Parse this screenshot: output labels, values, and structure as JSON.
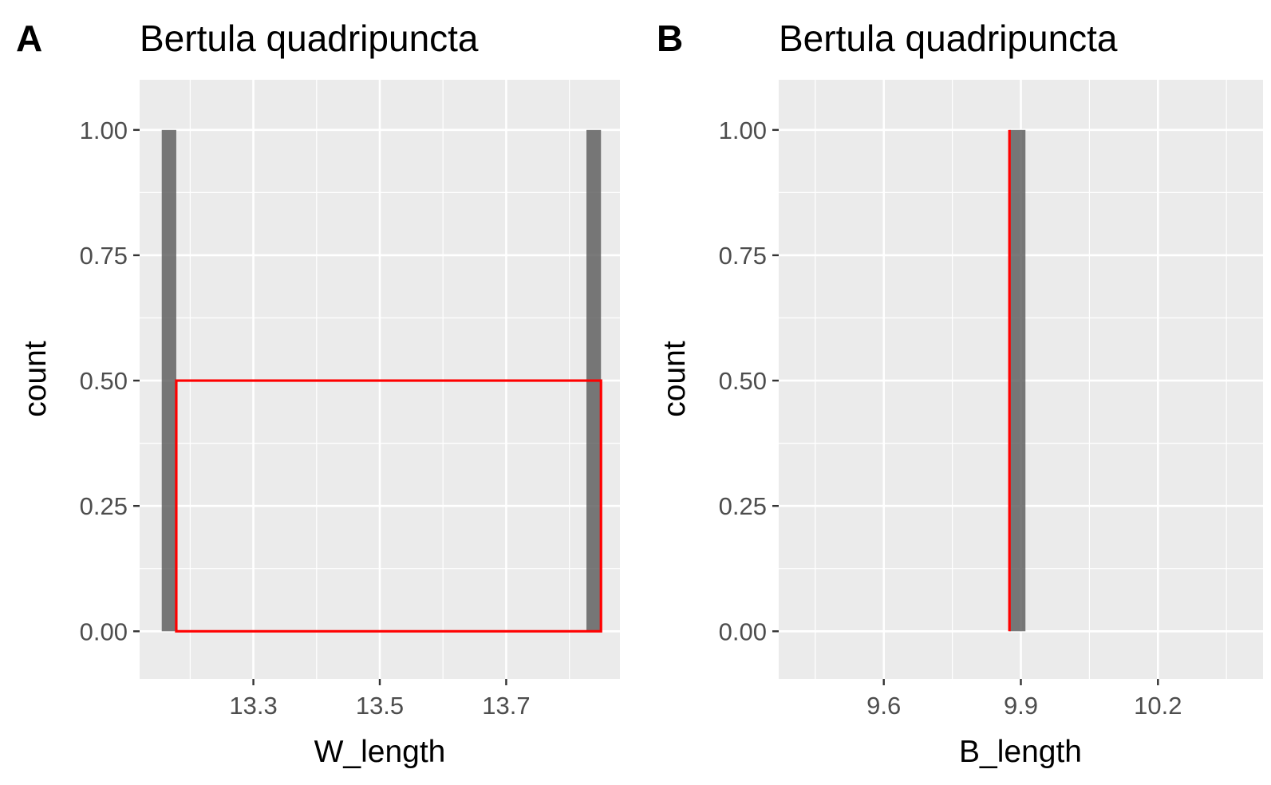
{
  "chart_data": [
    {
      "panel_tag": "A",
      "type": "histogram",
      "title": "Bertula quadripuncta",
      "xlabel": "W_length",
      "ylabel": "count",
      "xlim": [
        13.12,
        13.88
      ],
      "ylim": [
        -0.095,
        1.1
      ],
      "xticks": [
        13.3,
        13.5,
        13.7
      ],
      "xtick_labels": [
        "13.3",
        "13.5",
        "13.7"
      ],
      "xminor": [
        13.2,
        13.4,
        13.6,
        13.8
      ],
      "yticks": [
        0,
        0.25,
        0.5,
        0.75,
        1.0
      ],
      "ytick_labels": [
        "0.00",
        "0.25",
        "0.50",
        "0.75",
        "1.00"
      ],
      "bars": [
        {
          "x0": 13.155,
          "x1": 13.178,
          "count": 1
        },
        {
          "x0": 13.827,
          "x1": 13.85,
          "count": 1
        }
      ],
      "overlay": {
        "type": "step",
        "color": "#ff0000",
        "x0": 13.178,
        "x1": 13.85,
        "height": 0.5
      },
      "bar_color": "#595959",
      "grid": true,
      "background": "#ebebeb"
    },
    {
      "panel_tag": "B",
      "type": "histogram",
      "title": "Bertula quadripuncta",
      "xlabel": "B_length",
      "ylabel": "count",
      "xlim": [
        9.37,
        10.43
      ],
      "ylim": [
        -0.095,
        1.1
      ],
      "xticks": [
        9.6,
        9.9,
        10.2
      ],
      "xtick_labels": [
        "9.6",
        "9.9",
        "10.2"
      ],
      "xminor": [
        9.45,
        9.75,
        10.05,
        10.35
      ],
      "yticks": [
        0,
        0.25,
        0.5,
        0.75,
        1.0
      ],
      "ytick_labels": [
        "0.00",
        "0.25",
        "0.50",
        "0.75",
        "1.00"
      ],
      "bars": [
        {
          "x0": 9.875,
          "x1": 9.91,
          "count": 1
        }
      ],
      "overlay": {
        "type": "vline",
        "color": "#ff0000",
        "x": 9.875,
        "height": 1
      },
      "bar_color": "#595959",
      "grid": true,
      "background": "#ebebeb"
    }
  ]
}
